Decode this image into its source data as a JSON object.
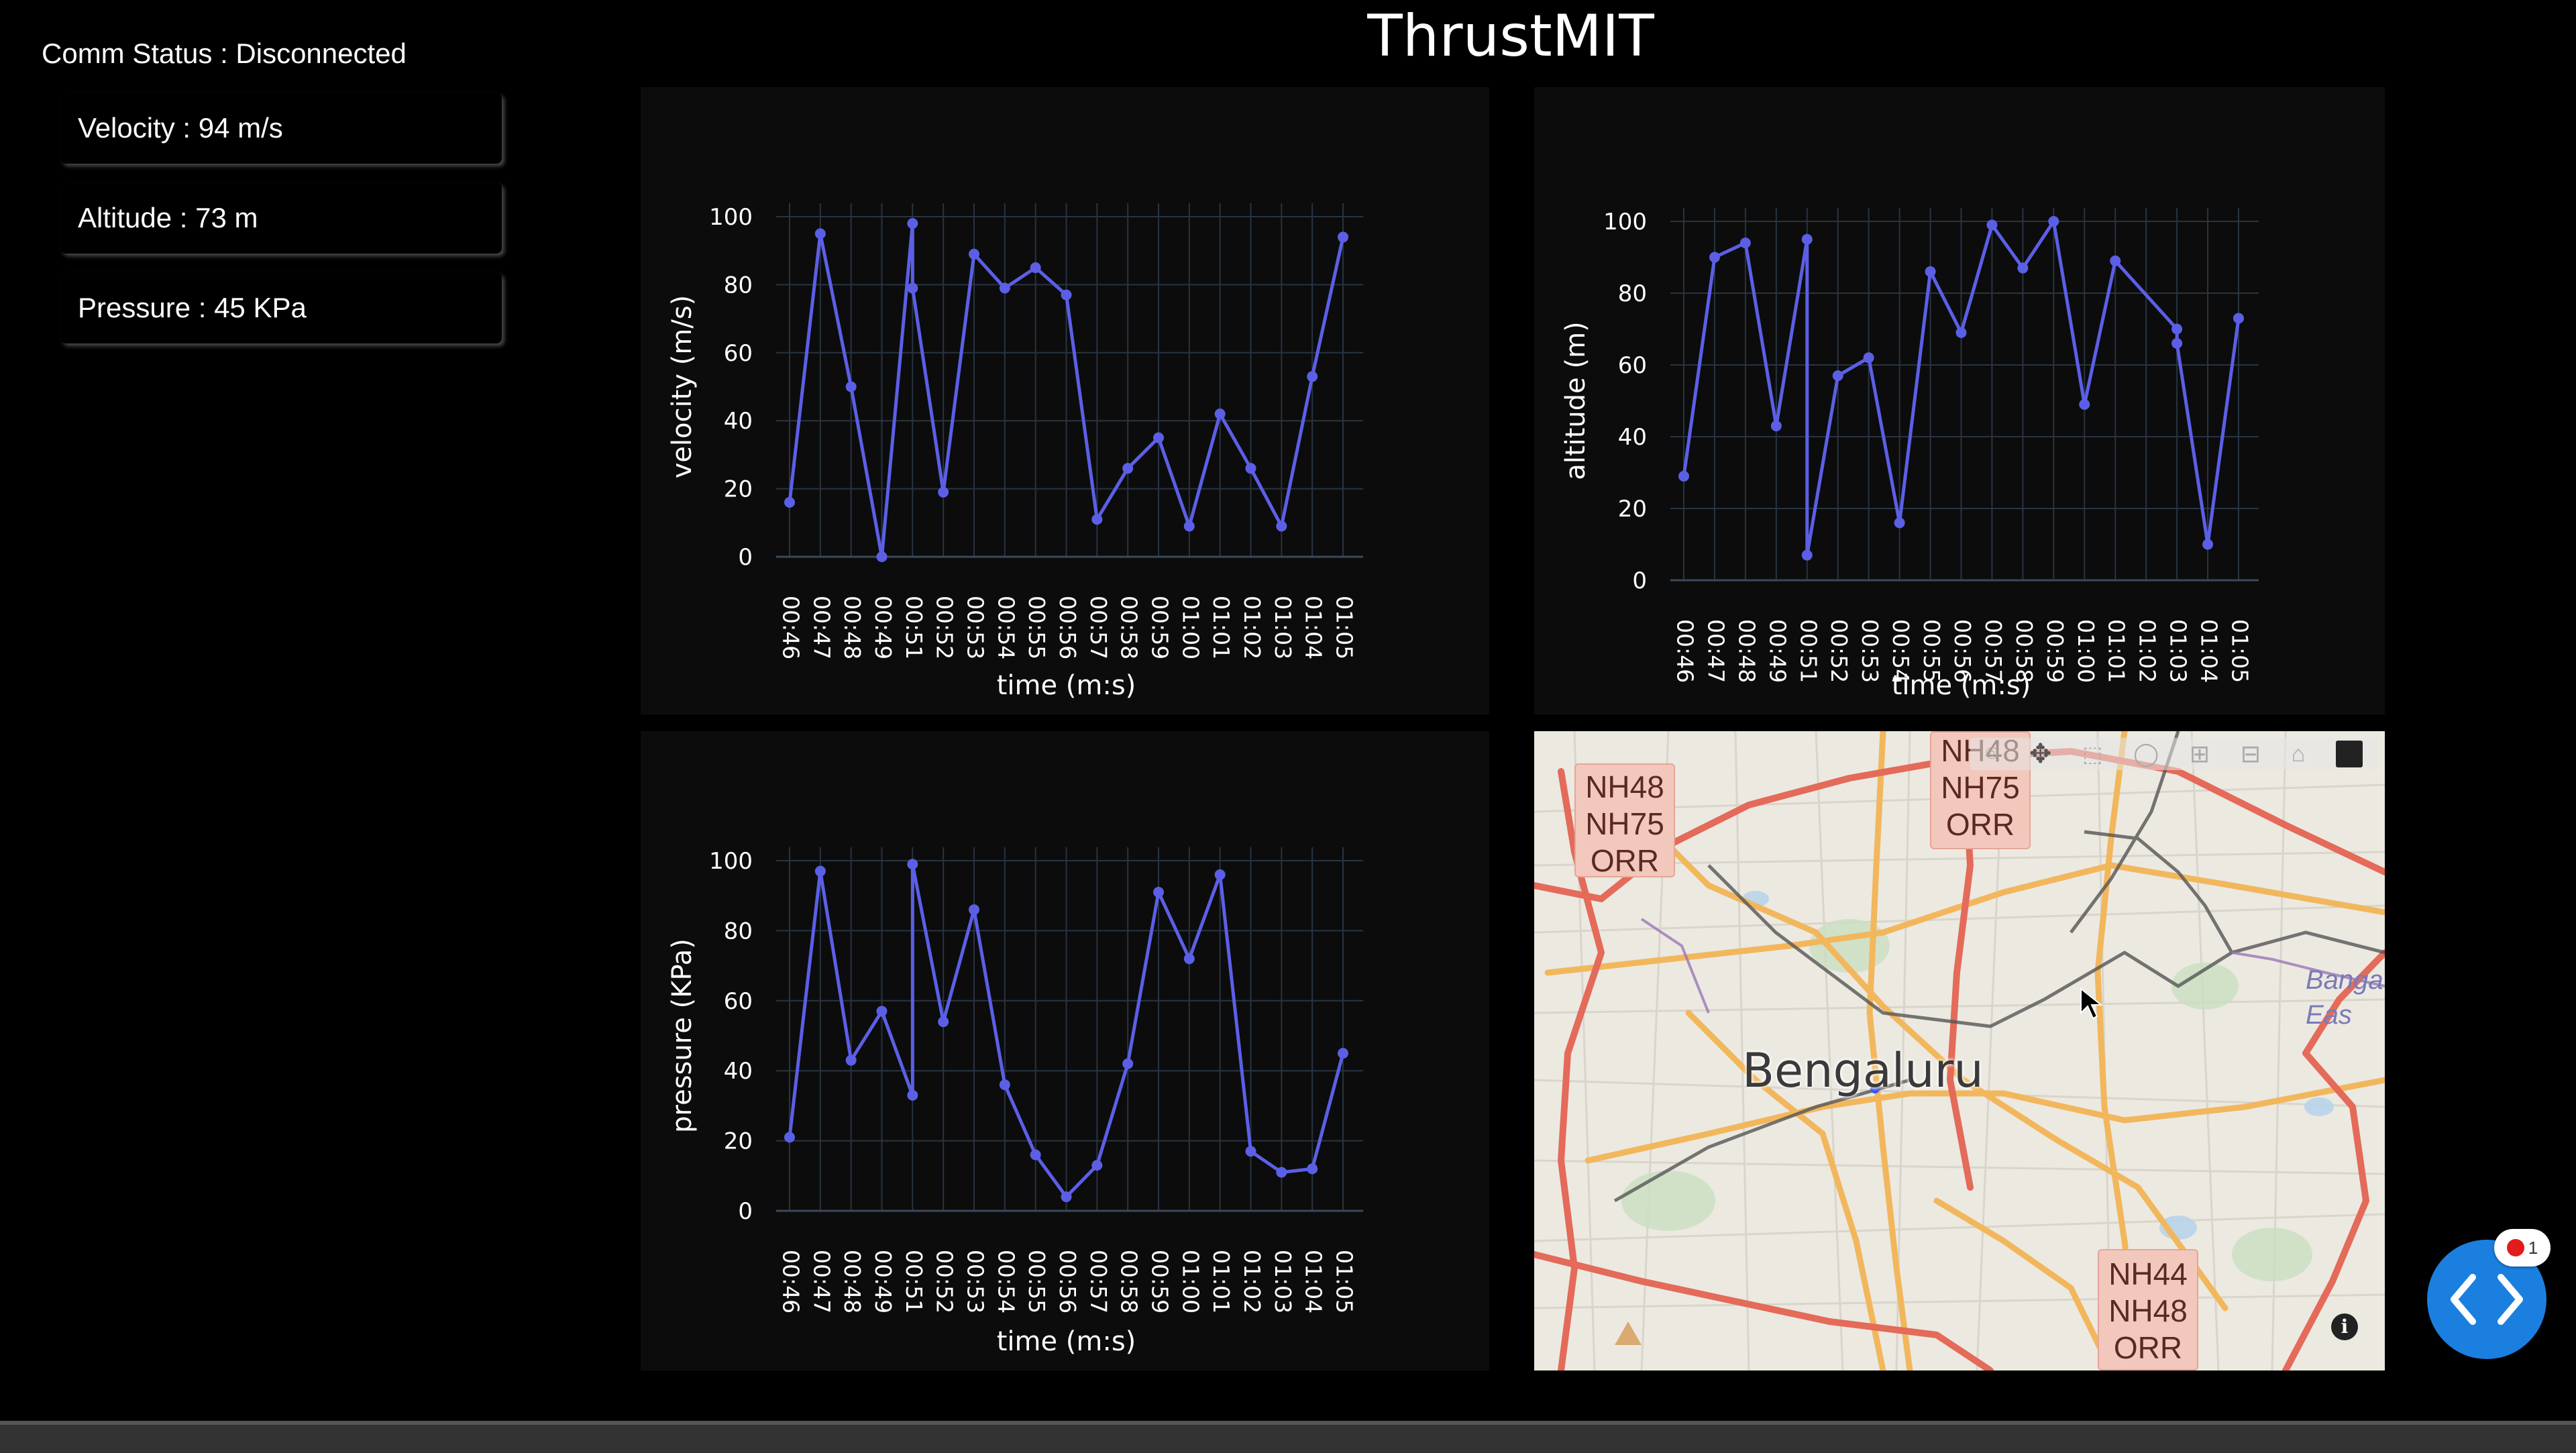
{
  "app": {
    "title": "ThrustMIT"
  },
  "status": {
    "comm": "Comm Status : Disconnected"
  },
  "cards": {
    "velocity": "Velocity : 94 m/s",
    "altitude": "Altitude : 73 m",
    "pressure": "Pressure : 45 KPa"
  },
  "colors": {
    "line": "#5b5fe6",
    "grid": "#283442",
    "panel": "#0c0c0c"
  },
  "chart_data": [
    {
      "type": "line",
      "x": [
        "00:46",
        "00:47",
        "00:48",
        "00:49",
        "00:51",
        "00:51",
        "00:52",
        "00:53",
        "00:54",
        "00:55",
        "00:56",
        "00:57",
        "00:58",
        "00:59",
        "01:00",
        "01:01",
        "01:02",
        "01:03",
        "01:04",
        "01:05"
      ],
      "tick_labels": [
        "00:46",
        "00:47",
        "00:48",
        "00:49",
        "00:51",
        "00:52",
        "00:53",
        "00:54",
        "00:55",
        "00:56",
        "00:57",
        "00:58",
        "00:59",
        "01:00",
        "01:01",
        "01:02",
        "01:03",
        "01:04",
        "01:05"
      ],
      "values": [
        16,
        95,
        50,
        0,
        98,
        79,
        19,
        89,
        79,
        85,
        77,
        11,
        26,
        35,
        9,
        42,
        26,
        9,
        53,
        94
      ],
      "xlabel": "time (m:s)",
      "ylabel": "velocity (m/s)",
      "ylim": [
        0,
        100
      ],
      "yticks": [
        0,
        20,
        40,
        60,
        80,
        100
      ],
      "grid": true
    },
    {
      "type": "line",
      "x": [
        "00:46",
        "00:47",
        "00:48",
        "00:49",
        "00:51",
        "00:51",
        "00:52",
        "00:53",
        "00:54",
        "00:55",
        "00:56",
        "00:57",
        "00:58",
        "00:59",
        "01:00",
        "01:01",
        "01:03",
        "01:03",
        "01:04",
        "01:05"
      ],
      "tick_labels": [
        "00:46",
        "00:47",
        "00:48",
        "00:49",
        "00:51",
        "00:52",
        "00:53",
        "00:54",
        "00:55",
        "00:56",
        "00:57",
        "00:58",
        "00:59",
        "01:00",
        "01:01",
        "01:02",
        "01:03",
        "01:04",
        "01:05"
      ],
      "values": [
        29,
        90,
        94,
        43,
        95,
        7,
        57,
        62,
        16,
        86,
        69,
        99,
        87,
        100,
        49,
        89,
        70,
        66,
        10,
        73
      ],
      "xlabel": "time (m:s)",
      "ylabel": "altitude (m)",
      "ylim": [
        0,
        100
      ],
      "yticks": [
        0,
        20,
        40,
        60,
        80,
        100
      ],
      "grid": true
    },
    {
      "type": "line",
      "x": [
        "00:46",
        "00:47",
        "00:48",
        "00:49",
        "00:51",
        "00:51",
        "00:52",
        "00:53",
        "00:54",
        "00:55",
        "00:56",
        "00:57",
        "00:58",
        "00:59",
        "01:00",
        "01:01",
        "01:02",
        "01:03",
        "01:04",
        "01:05"
      ],
      "tick_labels": [
        "00:46",
        "00:47",
        "00:48",
        "00:49",
        "00:51",
        "00:52",
        "00:53",
        "00:54",
        "00:55",
        "00:56",
        "00:57",
        "00:58",
        "00:59",
        "01:00",
        "01:01",
        "01:02",
        "01:03",
        "01:04",
        "01:05"
      ],
      "values": [
        21,
        97,
        43,
        57,
        33,
        99,
        54,
        86,
        36,
        16,
        4,
        13,
        42,
        91,
        72,
        96,
        17,
        11,
        12,
        45
      ],
      "xlabel": "time (m:s)",
      "ylabel": "pressure (KPa)",
      "ylim": [
        0,
        100
      ],
      "yticks": [
        0,
        20,
        40,
        60,
        80,
        100
      ],
      "grid": true
    }
  ],
  "map": {
    "city_label": "Bengaluru",
    "shields": [
      "NH48\nNH75\nORR",
      "NH48\nNH75\nORR",
      "NH44\nNH48\nORR"
    ],
    "edge_label": "Banga\nEas",
    "toolbar_icons": [
      "camera-icon",
      "pan-icon",
      "box-select-icon",
      "lasso-icon",
      "zoom-in-icon",
      "zoom-out-icon",
      "reset-home-icon",
      "plotly-logo-icon"
    ],
    "info_icon": "info-icon"
  },
  "fab": {
    "icon": "code-brackets-icon",
    "badge": "1"
  }
}
